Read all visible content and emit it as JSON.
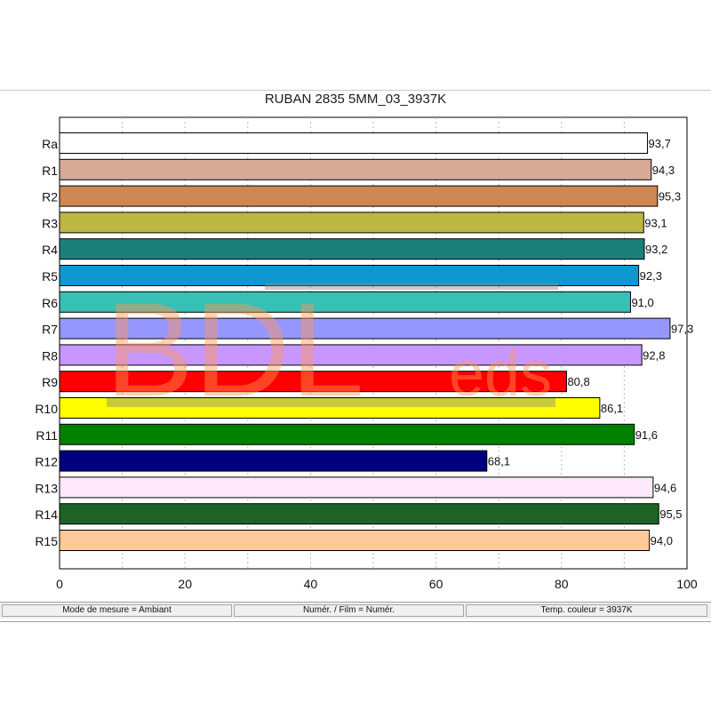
{
  "chart_data": {
    "type": "bar",
    "orientation": "horizontal",
    "title": "RUBAN 2835 5MM_03_3937K",
    "categories": [
      "Ra",
      "R1",
      "R2",
      "R3",
      "R4",
      "R5",
      "R6",
      "R7",
      "R8",
      "R9",
      "R10",
      "R11",
      "R12",
      "R13",
      "R14",
      "R15"
    ],
    "values": [
      93.7,
      94.3,
      95.3,
      93.1,
      93.2,
      92.3,
      91.0,
      97.3,
      92.8,
      80.8,
      86.1,
      91.6,
      68.1,
      94.6,
      95.5,
      94.0
    ],
    "value_labels": [
      "93,7",
      "94,3",
      "95,3",
      "93,1",
      "93,2",
      "92,3",
      "91,0",
      "97,3",
      "92,8",
      "80,8",
      "86,1",
      "91,6",
      "68,1",
      "94,6",
      "95,5",
      "94,0"
    ],
    "colors": [
      "#ffffff",
      "#d7aa98",
      "#cc8754",
      "#bdb743",
      "#1b7f7a",
      "#0f97d2",
      "#37c0b5",
      "#9696ff",
      "#c796ff",
      "#ff0000",
      "#ffff00",
      "#008000",
      "#00007f",
      "#fde9fb",
      "#1f6225",
      "#ffc999"
    ],
    "xlim": [
      0,
      100
    ],
    "xticks": [
      "0",
      "20",
      "40",
      "60",
      "80",
      "100"
    ],
    "xlabel": "",
    "ylabel": "",
    "grid": "vertical dashed"
  },
  "status_bar": [
    "Mode de mesure = Ambiant",
    "Numér. / Film = Numér.",
    "Temp. couleur = 3937K"
  ],
  "watermark": {
    "main": "BDL",
    "sub": "eds"
  }
}
